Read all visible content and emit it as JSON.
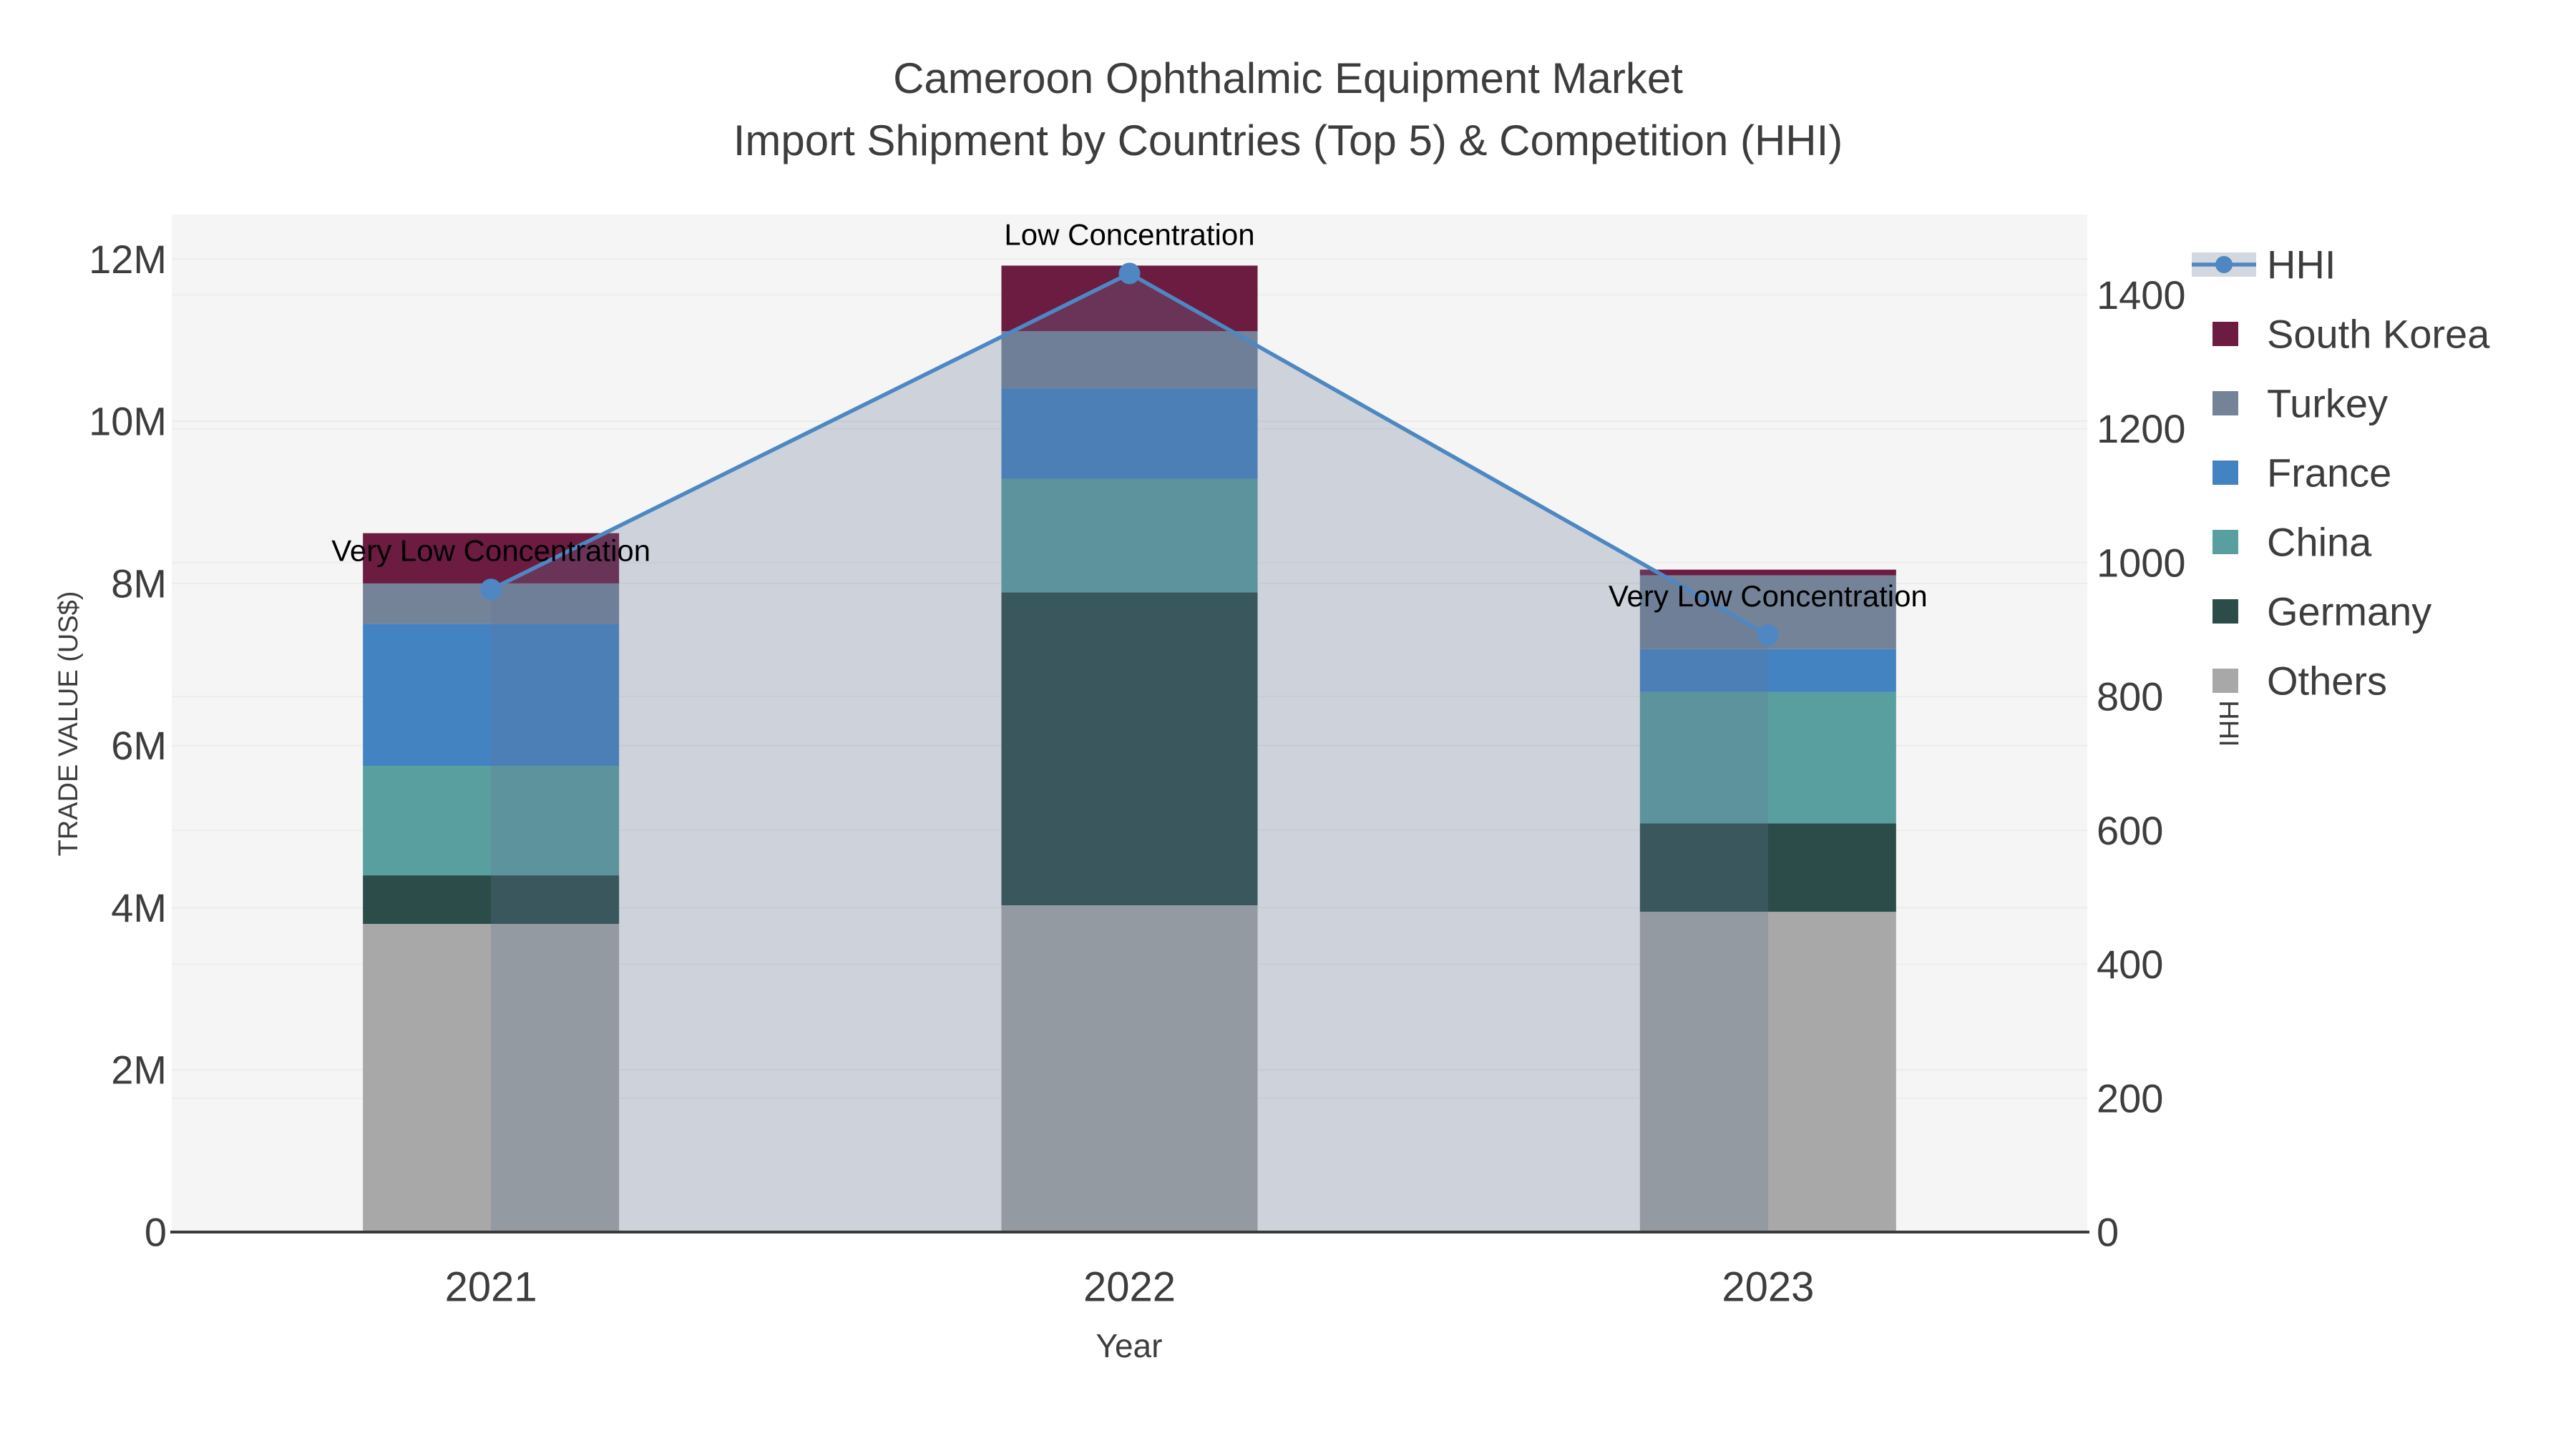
{
  "title": {
    "line1": "Cameroon Ophthalmic Equipment Market",
    "line2": "Import Shipment by Countries (Top 5) & Competition (HHI)"
  },
  "axes": {
    "x_title": "Year",
    "y_left_title": "TRADE VALUE (US$)",
    "y_right_title": "HHI",
    "y_left_tick_labels": [
      "0",
      "2M",
      "4M",
      "6M",
      "8M",
      "10M",
      "12M"
    ],
    "y_left_tick_values": [
      0,
      2,
      4,
      6,
      8,
      10,
      12
    ],
    "y_right_tick_labels": [
      "0",
      "200",
      "400",
      "600",
      "800",
      "1000",
      "1200",
      "1400"
    ],
    "y_right_tick_values": [
      0,
      200,
      400,
      600,
      800,
      1000,
      1200,
      1400
    ]
  },
  "chart_data": {
    "type": "bar+line",
    "subtype": "stacked bars (left axis, trade value M US$) with HHI line + translucent area fill (right axis)",
    "categories": [
      "2021",
      "2022",
      "2023"
    ],
    "bar_unit": "M US$",
    "series": [
      {
        "name": "Others",
        "color": "#A7A8A7",
        "values": [
          3.8,
          4.03,
          3.95
        ]
      },
      {
        "name": "Germany",
        "color": "#2C4C49",
        "values": [
          0.6,
          3.86,
          1.09
        ]
      },
      {
        "name": "China",
        "color": "#599F9F",
        "values": [
          1.35,
          1.4,
          1.62
        ]
      },
      {
        "name": "France",
        "color": "#4383C2",
        "values": [
          1.75,
          1.12,
          0.53
        ]
      },
      {
        "name": "Turkey",
        "color": "#758399",
        "values": [
          0.5,
          0.7,
          0.91
        ]
      },
      {
        "name": "South Korea",
        "color": "#6C1B41",
        "values": [
          0.62,
          0.81,
          0.07
        ]
      }
    ],
    "stack_totals": [
      8.62,
      11.92,
      8.17
    ],
    "line_series": {
      "name": "HHI",
      "axis": "right",
      "color": "#4E87C1",
      "area_fill": "rgba(100,118,150,0.28)",
      "values": [
        960,
        1432,
        892
      ]
    },
    "annotations": [
      {
        "x": "2021",
        "text": "Very Low Concentration"
      },
      {
        "x": "2022",
        "text": "Low Concentration"
      },
      {
        "x": "2023",
        "text": "Very Low Concentration"
      }
    ],
    "y_left_range": [
      0,
      12.55
    ],
    "y_right_range": [
      0,
      1520
    ],
    "grid": true,
    "legend_position": "right"
  },
  "legend": {
    "items": [
      {
        "label": "HHI",
        "glyph": "line",
        "color": "#4E87C1",
        "band_color": "#D3D8E0"
      },
      {
        "label": "South Korea",
        "glyph": "swatch",
        "color": "#6C1B41"
      },
      {
        "label": "Turkey",
        "glyph": "swatch",
        "color": "#758399"
      },
      {
        "label": "France",
        "glyph": "swatch",
        "color": "#4383C2"
      },
      {
        "label": "China",
        "glyph": "swatch",
        "color": "#599F9F"
      },
      {
        "label": "Germany",
        "glyph": "swatch",
        "color": "#2C4C49"
      },
      {
        "label": "Others",
        "glyph": "swatch",
        "color": "#A7A8A7"
      }
    ]
  },
  "colors": {
    "page_bg": "#FFFFFF",
    "plot_bg": "#F5F5F5",
    "grid_line": "#EBEBEB",
    "axis_line": "#3A3A3A",
    "text": "#3D3D3D",
    "annotation_text": "#000000"
  }
}
